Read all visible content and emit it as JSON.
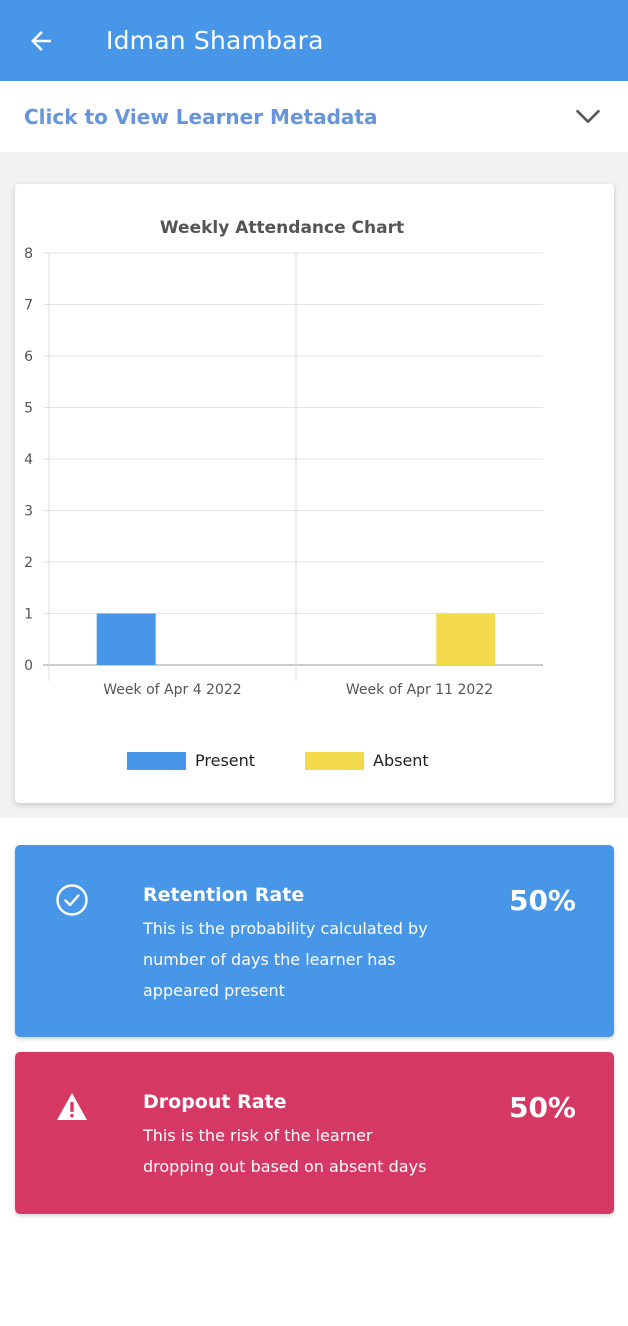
{
  "header": {
    "title": "Idman Shambara",
    "back_icon": "arrow-left-icon",
    "background": "#4796e8"
  },
  "metadata_toggle": {
    "label": "Click to View Learner Metadata",
    "icon": "chevron-down-icon",
    "color": "#6695dc"
  },
  "chart_data": {
    "type": "bar",
    "title": "Weekly Attendance Chart",
    "categories": [
      "Week of Apr 4 2022",
      "Week of Apr 11 2022"
    ],
    "series": [
      {
        "name": "Present",
        "values": [
          1,
          0
        ],
        "color": "#4796e8"
      },
      {
        "name": "Absent",
        "values": [
          0,
          1
        ],
        "color": "#f2da4a"
      }
    ],
    "ylim": [
      0,
      8
    ],
    "yticks": [
      "0",
      "1",
      "2",
      "3",
      "4",
      "5",
      "6",
      "7",
      "8"
    ],
    "grid": true,
    "legend": "bottom"
  },
  "retention": {
    "title": "Retention Rate",
    "description": "This is the probability calculated by number of days the learner has appeared present",
    "value": "50%",
    "icon": "check-circle-icon",
    "color": "#4796e8"
  },
  "dropout": {
    "title": "Dropout Rate",
    "description": "This is the risk of the learner dropping out based on absent days",
    "value": "50%",
    "icon": "warning-triangle-icon",
    "color": "#d63864"
  }
}
